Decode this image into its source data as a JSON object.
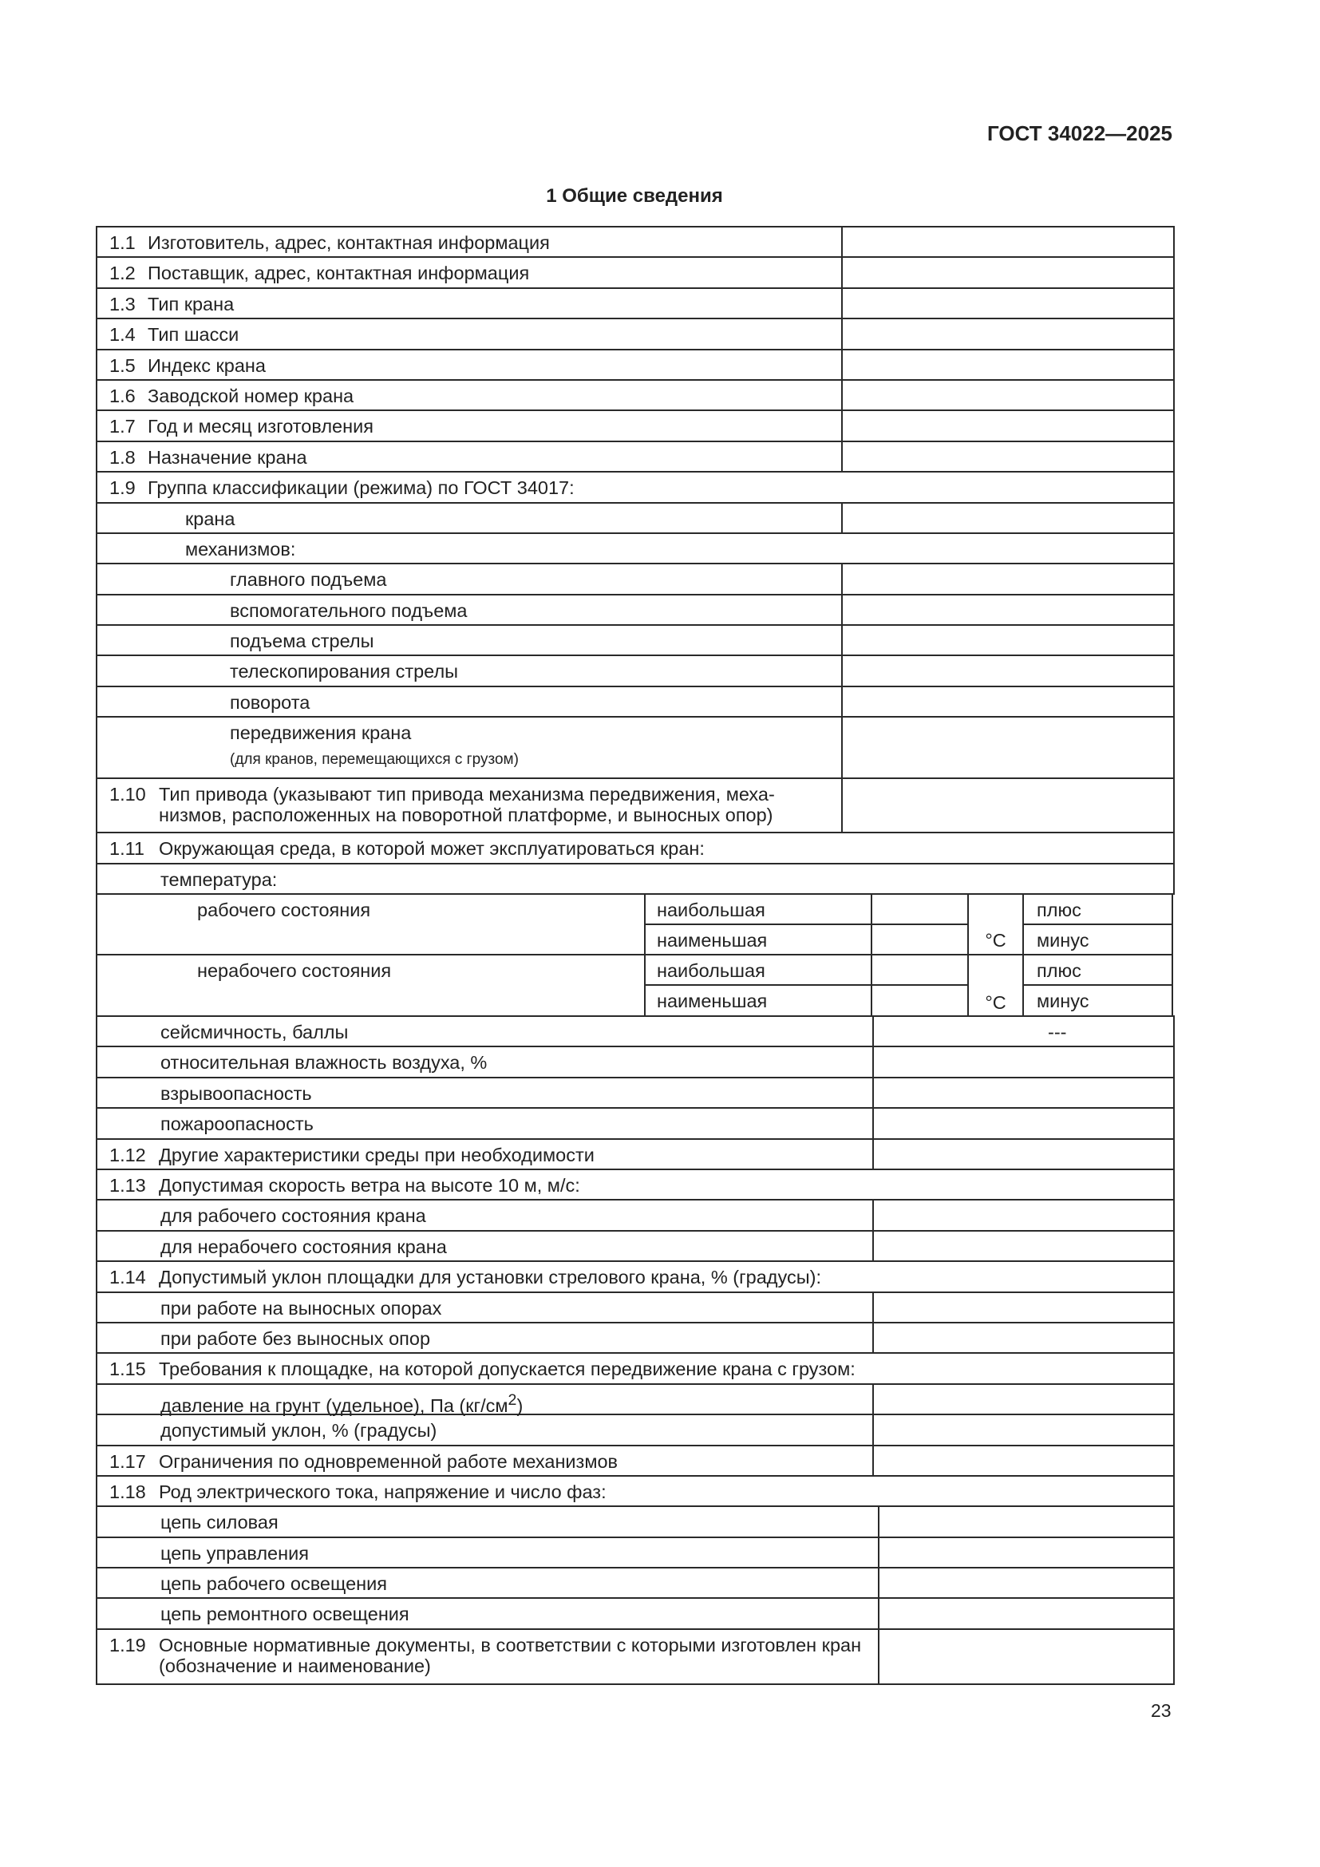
{
  "header": {
    "doc_id": "ГОСТ 34022—2025",
    "section_title": "1  Общие сведения",
    "page_number": "23"
  },
  "table": {
    "rows": [
      {
        "num": "1.1",
        "text": "Изготовитель, адрес, контактная информация"
      },
      {
        "num": "1.2",
        "text": "Поставщик, адрес, контактная информация"
      },
      {
        "num": "1.3",
        "text": "Тип крана"
      },
      {
        "num": "1.4",
        "text": "Тип шасси"
      },
      {
        "num": "1.5",
        "text": "Индекс крана"
      },
      {
        "num": "1.6",
        "text": "Заводской номер крана"
      },
      {
        "num": "1.7",
        "text": "Год и месяц изготовления"
      },
      {
        "num": "1.8",
        "text": "Назначение крана"
      },
      {
        "num": "1.9",
        "text": "Группа классификации (режима) по ГОСТ 34017:"
      },
      {
        "text": "крана"
      },
      {
        "text": "механизмов:"
      },
      {
        "text": "главного подъема"
      },
      {
        "text": "вспомогательного подъема"
      },
      {
        "text": "подъема стрелы"
      },
      {
        "text": "телескопирования стрелы"
      },
      {
        "text": "поворота"
      },
      {
        "text": "передвижения крана",
        "note": "(для кранов, перемещающихся с грузом)"
      },
      {
        "num": "1.10",
        "text": "Тип привода (указывают тип привода механизма передвижения, меха-низмов, расположенных на поворотной платформе, и выносных опор)"
      },
      {
        "num": "1.11",
        "text": "Окружающая среда, в которой может эксплуатироваться кран:"
      },
      {
        "text": "температура:"
      },
      {
        "temperature": true
      },
      {
        "text": "сейсмичность, баллы",
        "value": "---"
      },
      {
        "text": "относительная влажность воздуха, %"
      },
      {
        "text": "взрывоопасность"
      },
      {
        "text": "пожароопасность"
      },
      {
        "num": "1.12",
        "text": "Другие характеристики среды при необходимости"
      },
      {
        "num": "1.13",
        "text": "Допустимая скорость ветра на высоте 10 м, м/с:"
      },
      {
        "text": "для рабочего состояния крана"
      },
      {
        "text": "для нерабочего состояния крана"
      },
      {
        "num": "1.14",
        "text": "Допустимый уклон площадки для установки стрелового крана, % (градусы):"
      },
      {
        "text": "при работе на выносных опорах"
      },
      {
        "text": "при работе без выносных опор"
      },
      {
        "num": "1.15",
        "text": "Требования к площадке, на которой допускается передвижение крана с грузом:"
      },
      {
        "text": "давление на грунт (удельное), Па (кг/см",
        "sup": "2",
        "tail": ")"
      },
      {
        "text": "допустимый уклон, % (градусы)"
      },
      {
        "num": "1.17",
        "text": "Ограничения по одновременной работе механизмов"
      },
      {
        "num": "1.18",
        "text": "Род электрического тока, напряжение и число фаз:"
      },
      {
        "text": "цепь силовая"
      },
      {
        "text": "цепь управления"
      },
      {
        "text": "цепь рабочего освещения"
      },
      {
        "text": "цепь ремонтного освещения"
      },
      {
        "num": "1.19",
        "text": "Основные нормативные документы, в соответствии с которыми изготовлен кран (обозначение и наименование)"
      }
    ],
    "temperature": {
      "unit": "°C",
      "groups": [
        {
          "state": "рабочего состояния",
          "items": [
            {
              "limit": "наибольшая",
              "sign": "плюс"
            },
            {
              "limit": "наименьшая",
              "sign": "минус"
            }
          ]
        },
        {
          "state": "нерабочего состояния",
          "items": [
            {
              "limit": "наибольшая",
              "sign": "плюс"
            },
            {
              "limit": "наименьшая",
              "sign": "минус"
            }
          ]
        }
      ]
    }
  }
}
